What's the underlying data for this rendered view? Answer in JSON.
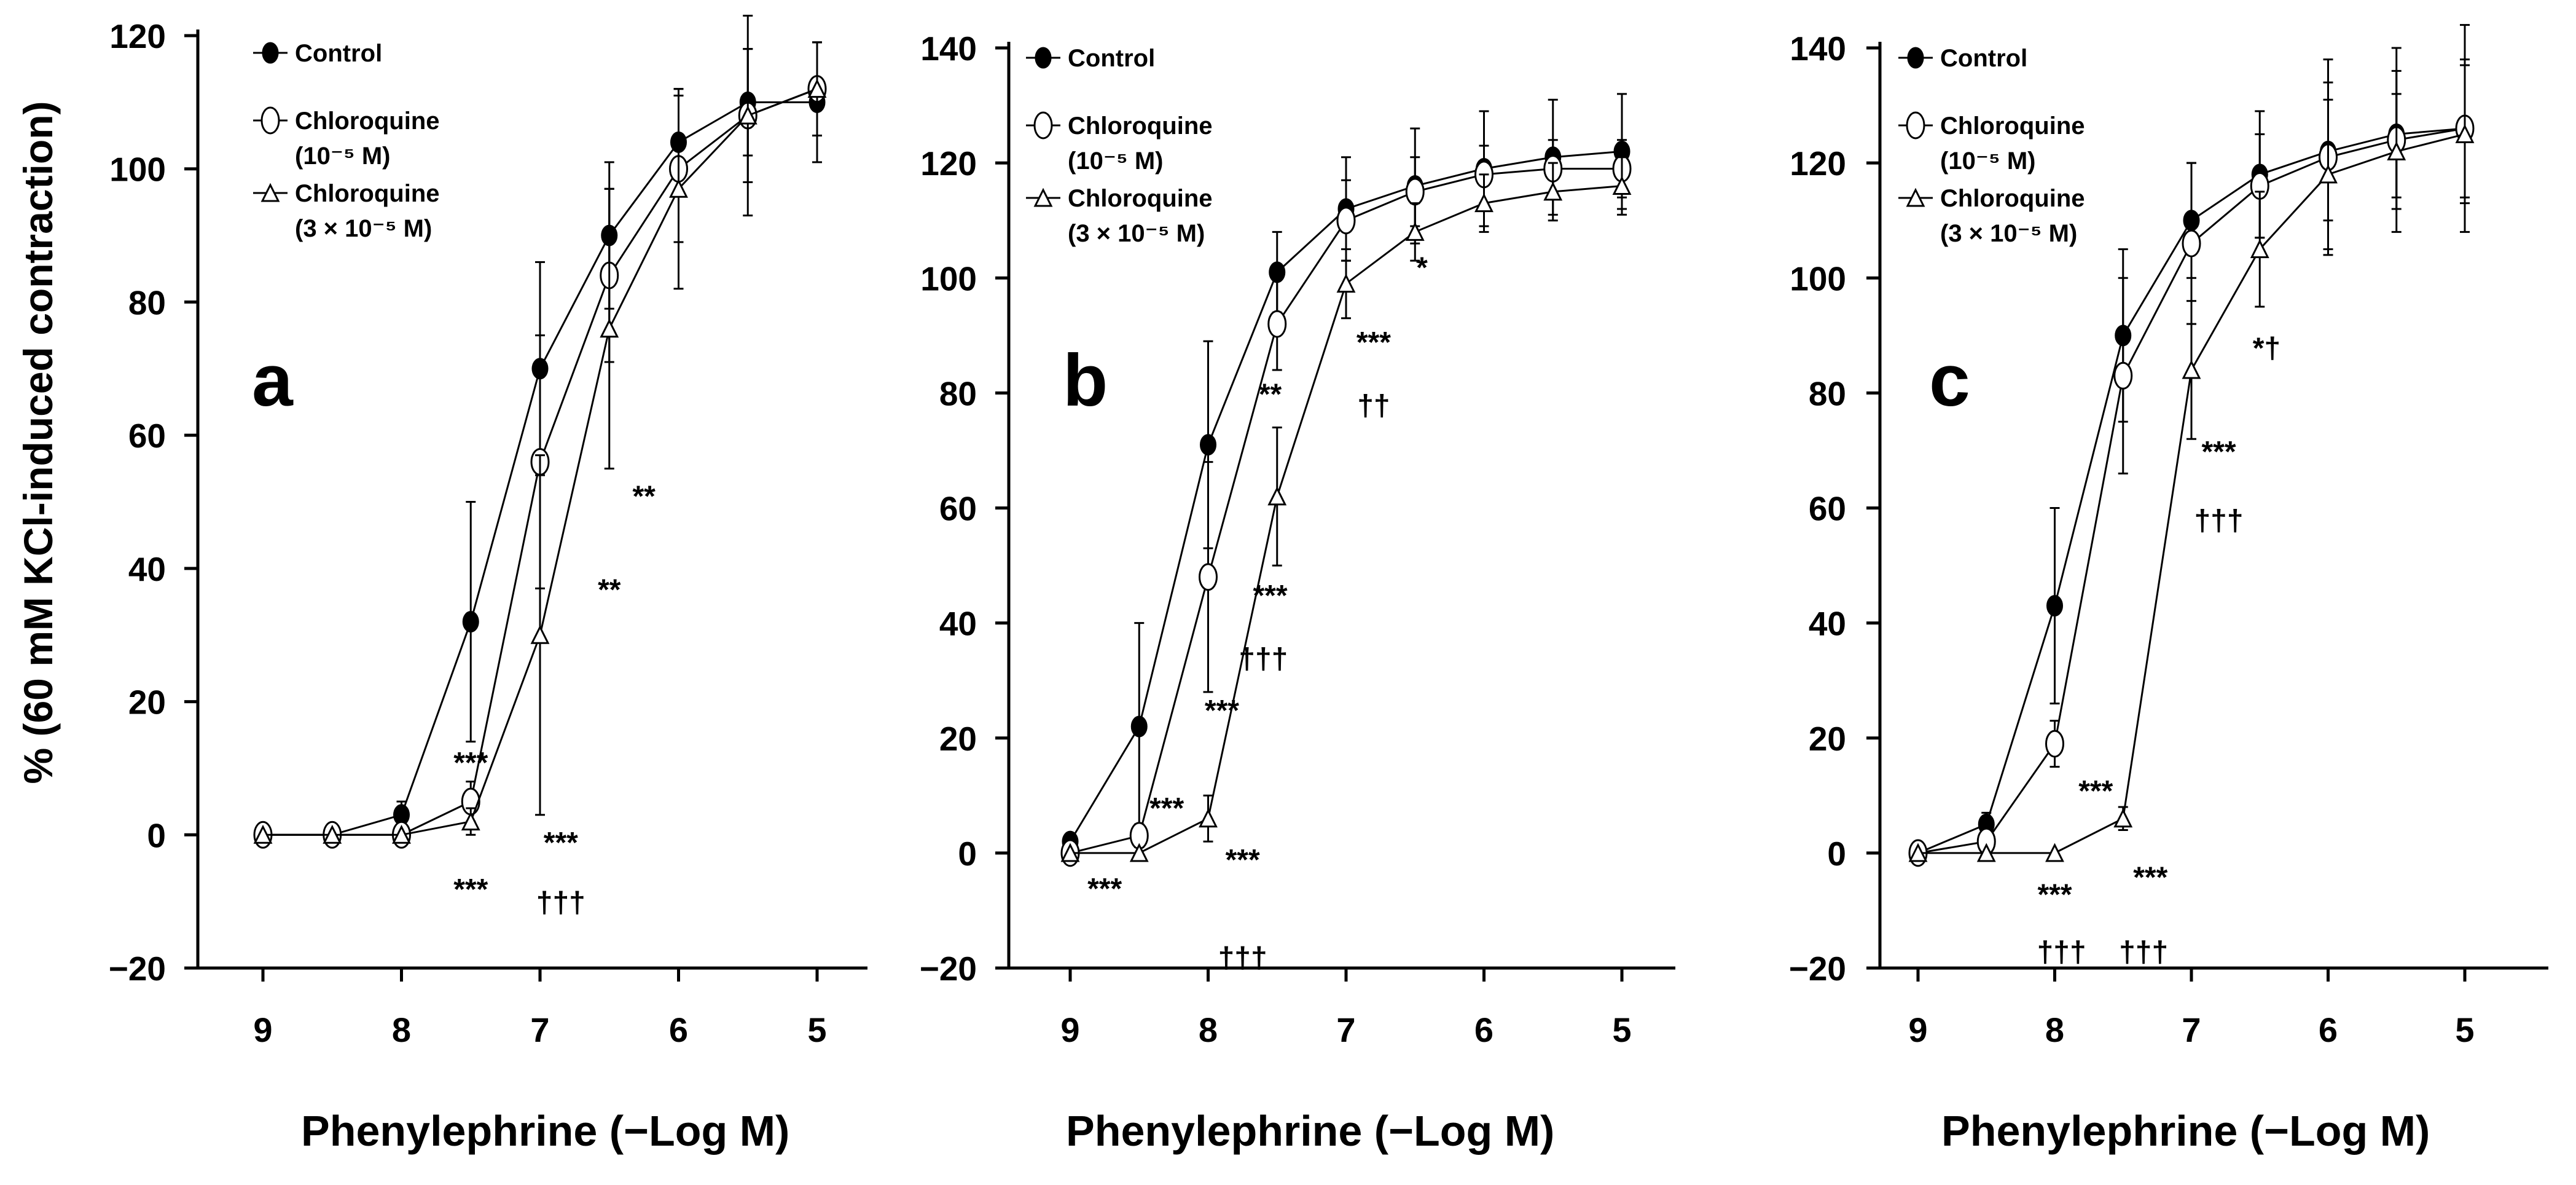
{
  "ylabel": "% (60 mM KCl-induced contraction)",
  "xlabel": "Phenylephrine (−Log M)",
  "chart_data": [
    {
      "type": "line",
      "panel_label": "a",
      "xlabel": "Phenylephrine (−Log M)",
      "ylabel": "% (60 mM KCl-induced contraction)",
      "x_ticks": [
        "9",
        "8",
        "7",
        "6",
        "5"
      ],
      "ylim": [
        -20,
        120
      ],
      "y_ticks": [
        "120",
        "100",
        "80",
        "60",
        "40",
        "20",
        "0",
        "−20"
      ],
      "x": [
        9,
        8.5,
        8,
        7.5,
        7,
        6.5,
        6,
        5.5,
        5
      ],
      "series": [
        {
          "name": "Control",
          "marker": "filled-circle",
          "values": [
            0,
            0,
            3,
            32,
            70,
            90,
            104,
            110,
            110
          ],
          "errors": [
            0,
            0,
            2,
            18,
            16,
            11,
            8,
            8,
            9
          ]
        },
        {
          "name": "Chloroquine (10⁻⁵ M)",
          "marker": "open-circle",
          "values": [
            0,
            0,
            0,
            5,
            56,
            84,
            100,
            108,
            112
          ],
          "errors": [
            0,
            0,
            0,
            3,
            19,
            13,
            11,
            10,
            7
          ]
        },
        {
          "name": "Chloroquine (3 × 10⁻⁵ M)",
          "marker": "open-triangle",
          "values": [
            0,
            0,
            0,
            2,
            30,
            76,
            97,
            108,
            112
          ],
          "errors": [
            0,
            0,
            0,
            2,
            27,
            21,
            15,
            15,
            7
          ]
        }
      ],
      "annotations": [
        {
          "x": 7.5,
          "y": 11,
          "text": "***"
        },
        {
          "x": 7.5,
          "y": -8,
          "text": "***"
        },
        {
          "x": 6.85,
          "y": -1,
          "text": "***"
        },
        {
          "x": 6.85,
          "y": -10,
          "text": "†††"
        },
        {
          "x": 6.5,
          "y": 37,
          "text": "**"
        },
        {
          "x": 6.25,
          "y": 51,
          "text": "**"
        }
      ],
      "legend": [
        "Control",
        "Chloroquine",
        "(10⁻⁵ M)",
        "Chloroquine",
        "(3 × 10⁻⁵ M)"
      ],
      "legend_placement": "top-left"
    },
    {
      "type": "line",
      "panel_label": "b",
      "xlabel": "Phenylephrine (−Log M)",
      "ylabel": "% (60 mM KCl-induced contraction)",
      "x_ticks": [
        "9",
        "8",
        "7",
        "6",
        "5"
      ],
      "ylim": [
        -20,
        140
      ],
      "y_ticks": [
        "140",
        "120",
        "100",
        "80",
        "60",
        "40",
        "20",
        "0",
        "−20"
      ],
      "x": [
        9,
        8.5,
        8,
        7.5,
        7,
        6.5,
        6,
        5.5,
        5
      ],
      "series": [
        {
          "name": "Control",
          "marker": "filled-circle",
          "values": [
            2,
            22,
            71,
            101,
            112,
            116,
            119,
            121,
            122
          ],
          "errors": [
            0,
            18,
            18,
            7,
            9,
            10,
            10,
            10,
            10
          ]
        },
        {
          "name": "Chloroquine (10⁻⁵ M)",
          "marker": "open-circle",
          "values": [
            0,
            3,
            48,
            92,
            110,
            115,
            118,
            119,
            119
          ],
          "errors": [
            0,
            2,
            20,
            8,
            7,
            6,
            5,
            5,
            5
          ]
        },
        {
          "name": "Chloroquine (3 × 10⁻⁵ M)",
          "marker": "open-triangle",
          "values": [
            0,
            0,
            6,
            62,
            99,
            108,
            113,
            115,
            116
          ],
          "errors": [
            0,
            0,
            4,
            12,
            6,
            5,
            5,
            5,
            5
          ]
        }
      ],
      "annotations": [
        {
          "x": 8.75,
          "y": -6,
          "text": "***"
        },
        {
          "x": 8.3,
          "y": 8,
          "text": "***"
        },
        {
          "x": 7.9,
          "y": 25,
          "text": "***"
        },
        {
          "x": 7.75,
          "y": -18,
          "text": "†††"
        },
        {
          "x": 7.75,
          "y": -1,
          "text": "***"
        },
        {
          "x": 7.55,
          "y": 45,
          "text": "***"
        },
        {
          "x": 7.6,
          "y": 34,
          "text": "†††"
        },
        {
          "x": 7.55,
          "y": 80,
          "text": "**"
        },
        {
          "x": 6.8,
          "y": 89,
          "text": "***"
        },
        {
          "x": 6.8,
          "y": 78,
          "text": "††"
        },
        {
          "x": 6.45,
          "y": 102,
          "text": "*"
        }
      ],
      "legend": [
        "Control",
        "Chloroquine",
        "(10⁻⁵ M)",
        "Chloroquine",
        "(3 × 10⁻⁵ M)"
      ],
      "legend_placement": "top-left"
    },
    {
      "type": "line",
      "panel_label": "c",
      "xlabel": "Phenylephrine (−Log M)",
      "ylabel": "% (60 mM KCl-induced contraction)",
      "x_ticks": [
        "9",
        "8",
        "7",
        "6",
        "5"
      ],
      "ylim": [
        -20,
        140
      ],
      "y_ticks": [
        "140",
        "120",
        "100",
        "80",
        "60",
        "40",
        "20",
        "0",
        "−20"
      ],
      "x": [
        9,
        8.5,
        8,
        7.5,
        7,
        6.5,
        6,
        5.5,
        5
      ],
      "series": [
        {
          "name": "Control",
          "marker": "filled-circle",
          "values": [
            0,
            5,
            43,
            90,
            110,
            118,
            122,
            125,
            126
          ],
          "errors": [
            0,
            2,
            17,
            15,
            10,
            11,
            12,
            11,
            12
          ]
        },
        {
          "name": "Chloroquine (10⁻⁵ M)",
          "marker": "open-circle",
          "values": [
            0,
            2,
            19,
            83,
            106,
            116,
            121,
            124,
            126
          ],
          "errors": [
            0,
            1,
            4,
            17,
            14,
            9,
            17,
            16,
            18
          ]
        },
        {
          "name": "Chloroquine (3 × 10⁻⁵ M)",
          "marker": "open-triangle",
          "values": [
            0,
            0,
            0,
            6,
            84,
            105,
            118,
            122,
            125
          ],
          "errors": [
            0,
            0,
            0,
            2,
            12,
            10,
            13,
            10,
            12
          ]
        }
      ],
      "annotations": [
        {
          "x": 7.7,
          "y": 11,
          "text": "***"
        },
        {
          "x": 8,
          "y": -7,
          "text": "***"
        },
        {
          "x": 7.95,
          "y": -17,
          "text": "†††"
        },
        {
          "x": 7.3,
          "y": -4,
          "text": "***"
        },
        {
          "x": 7.35,
          "y": -17,
          "text": "†††"
        },
        {
          "x": 6.8,
          "y": 70,
          "text": "***"
        },
        {
          "x": 6.8,
          "y": 58,
          "text": "†††"
        },
        {
          "x": 6.45,
          "y": 88,
          "text": "*†"
        }
      ],
      "legend": [
        "Control",
        "Chloroquine",
        "(10⁻⁵ M)",
        "Chloroquine",
        "(3 × 10⁻⁵ M)"
      ],
      "legend_placement": "top-left"
    }
  ]
}
